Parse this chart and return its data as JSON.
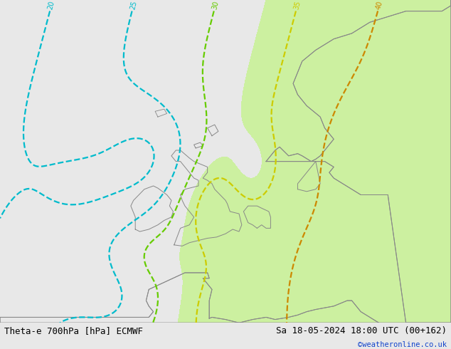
{
  "title_left": "Theta-e 700hPa [hPa] ECMWF",
  "title_right": "Sa 18-05-2024 18:00 UTC (00+162)",
  "credit": "©weatheronline.co.uk",
  "bg_color": "#e8e8e8",
  "map_bg_color": "#e8e8e8",
  "green_area_color": "#ccf0a0",
  "bottom_bar_color": "#d8d8d8",
  "title_fontsize": 9,
  "credit_color": "#1144cc",
  "figsize": [
    6.34,
    4.9
  ],
  "dpi": 100,
  "contour_levels": [
    20,
    25,
    30,
    35,
    40
  ],
  "contour_colors": {
    "20": "#00bbcc",
    "25": "#00bbcc",
    "30": "#66cc00",
    "35": "#cccc00",
    "40": "#cc8800"
  },
  "label_colors": {
    "20": "#00bbcc",
    "25": "#00bbcc",
    "30": "#66cc00",
    "35": "#cccc00",
    "40": "#cc8800"
  },
  "contour_linestyle": {
    "20": "dashed",
    "25": "dashed",
    "30": "dashed",
    "35": "dashed",
    "40": "dashed"
  },
  "green_threshold": 33.0,
  "lon_min": -25,
  "lon_max": 25,
  "lat_min": 43,
  "lat_max": 72
}
